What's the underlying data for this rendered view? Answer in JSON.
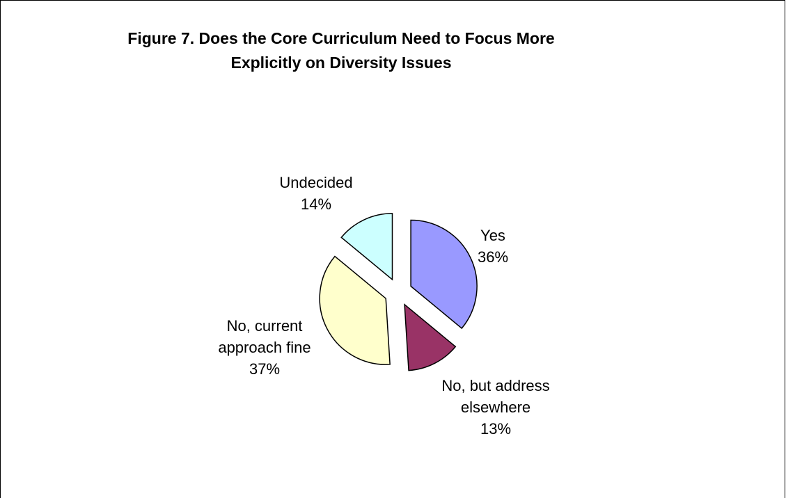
{
  "chart_data": {
    "type": "pie",
    "title_lines": [
      "Figure 7.  Does the Core Curriculum Need to Focus More",
      "Explicitly on Diversity Issues"
    ],
    "slices": [
      {
        "label_lines": [
          "Yes"
        ],
        "percent_label": "36%",
        "value": 36,
        "color": "#9999ff"
      },
      {
        "label_lines": [
          "No, but address",
          "elsewhere"
        ],
        "percent_label": "13%",
        "value": 13,
        "color": "#993366"
      },
      {
        "label_lines": [
          "No, current",
          "approach fine"
        ],
        "percent_label": "37%",
        "value": 37,
        "color": "#ffffcc"
      },
      {
        "label_lines": [
          "Undecided"
        ],
        "percent_label": "14%",
        "value": 14,
        "color": "#ccffff"
      }
    ],
    "exploded": true,
    "legend": "none"
  }
}
